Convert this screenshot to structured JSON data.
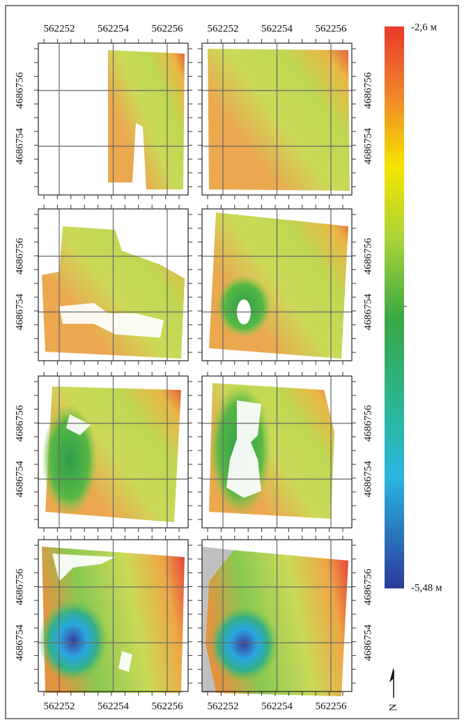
{
  "xticks": [
    562252,
    562254,
    562256
  ],
  "yticks": [
    4686756,
    4686754
  ],
  "colorbar": {
    "max_label": "-2,6 м",
    "min_label": "-5,48 м"
  },
  "north_label": "N"
}
